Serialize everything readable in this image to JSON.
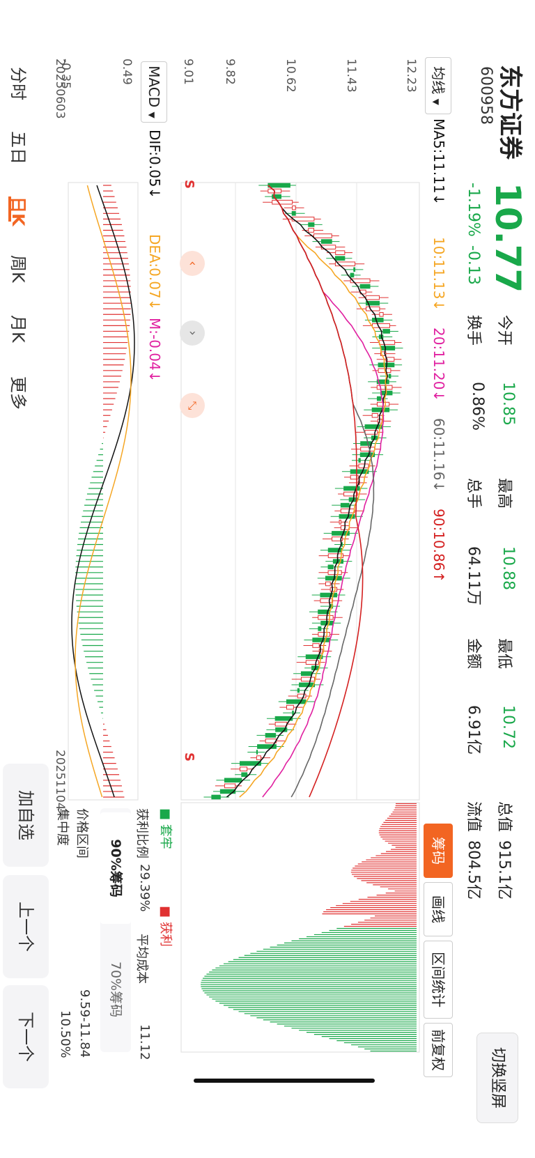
{
  "stock": {
    "name": "东方证券",
    "code": "600958",
    "price": "10.77",
    "change_pct": "-1.19%",
    "change": "-0.13"
  },
  "quote": {
    "open_label": "今开",
    "open": "10.85",
    "high_label": "最高",
    "high": "10.88",
    "low_label": "最低",
    "low": "10.72",
    "total_cap_label": "总值",
    "total_cap": "915.1亿",
    "turnover_label": "换手",
    "turnover": "0.86%",
    "volume_label": "总手",
    "volume": "64.11万",
    "amount_label": "金额",
    "amount": "6.91亿",
    "float_cap_label": "流值",
    "float_cap": "804.5亿"
  },
  "toolbar": {
    "switch_label": "切换竖屏",
    "chip_tab": "筹码",
    "draw_tab": "画线",
    "range_tab": "区间统计",
    "adjust_tab": "前复权"
  },
  "ma_bar": {
    "selector": "均线",
    "ma5": "MA5:11.11↓",
    "ma10": "10:11.13↓",
    "ma20": "20:11.20↓",
    "ma60": "60:11.16↓",
    "ma90": "90:10.86↑"
  },
  "price_axis": {
    "top": "12.23",
    "l2": "11.43",
    "l3": "10.62",
    "l4": "9.82",
    "bottom": "9.01"
  },
  "macd_bar": {
    "selector": "MACD",
    "dif": "DIF:0.05↓",
    "dea": "DEA:0.07↓",
    "m": "M:-0.04↓"
  },
  "macd_axis": {
    "top": "0.49",
    "bottom": "-0.35"
  },
  "dates": {
    "start": "20250603",
    "end": "20251104"
  },
  "markers": {
    "s1": "S",
    "s2": "S"
  },
  "chip": {
    "trapped_label": "套牢",
    "profit_label": "获利",
    "profit_ratio_label": "获利比例",
    "profit_ratio": "29.39%",
    "avg_cost_label": "平均成本",
    "avg_cost": "11.12",
    "tab90": "90%筹码",
    "tab70": "70%筹码",
    "range_label": "价格区间",
    "range": "9.59-11.84",
    "conc_label": "集中度",
    "conc": "10.50%"
  },
  "bottom_tabs": {
    "t1": "分时",
    "t2": "五日",
    "t3": "日K",
    "t4": "周K",
    "t5": "月K",
    "t6": "更多"
  },
  "footer": {
    "add": "加自选",
    "prev": "上一个",
    "next": "下一个"
  },
  "colors": {
    "up": "#e03131",
    "down": "#19a84a",
    "accent": "#f26522",
    "ma5": "#111111",
    "ma10": "#f5a623",
    "ma20": "#e020a0",
    "ma60": "#666666",
    "ma90": "#d42020"
  },
  "icons": [
    "collapse-icon",
    "zoom-in-icon",
    "expand-icon"
  ]
}
